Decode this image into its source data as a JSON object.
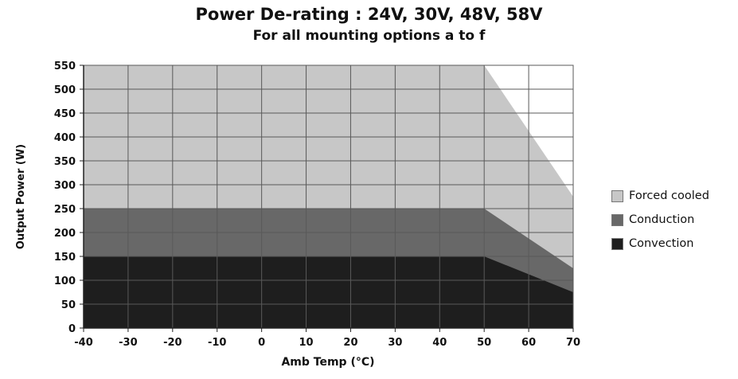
{
  "chart_data": {
    "type": "area",
    "title": "Power De-rating : 24V, 30V, 48V, 58V",
    "subtitle": "For all mounting options a to f",
    "xlabel": "Amb Temp (°C)",
    "ylabel": "Output Power (W)",
    "xlim": [
      -40,
      70
    ],
    "ylim": [
      0,
      550
    ],
    "x_ticks": [
      -40,
      -30,
      -20,
      -10,
      0,
      10,
      20,
      30,
      40,
      50,
      60,
      70
    ],
    "y_ticks": [
      0,
      50,
      100,
      150,
      200,
      250,
      300,
      350,
      400,
      450,
      500,
      550
    ],
    "grid": true,
    "grid_color": "#595959",
    "plot_bg": "#ffffff",
    "axis_color": "#222222",
    "legend_position": "right",
    "series": [
      {
        "name": "Forced cooled",
        "color": "#c7c7c7",
        "points": [
          [
            -40,
            550
          ],
          [
            50,
            550
          ],
          [
            70,
            275
          ]
        ]
      },
      {
        "name": "Conduction",
        "color": "#686868",
        "points": [
          [
            -40,
            250
          ],
          [
            50,
            250
          ],
          [
            70,
            125
          ]
        ]
      },
      {
        "name": "Convection",
        "color": "#1e1e1e",
        "points": [
          [
            -40,
            150
          ],
          [
            50,
            150
          ],
          [
            70,
            75
          ]
        ]
      }
    ]
  }
}
